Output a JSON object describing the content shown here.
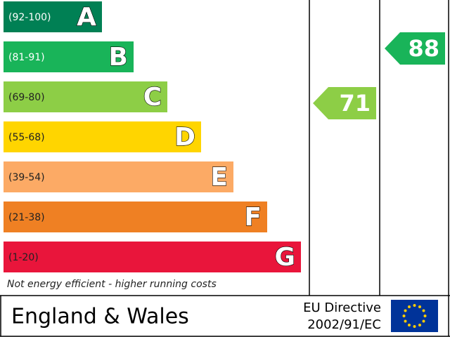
{
  "chart_data": {
    "type": "epc",
    "bands": [
      {
        "range": "(92-100)",
        "letter": "A",
        "color": "#008054"
      },
      {
        "range": "(81-91)",
        "letter": "B",
        "color": "#19b459"
      },
      {
        "range": "(69-80)",
        "letter": "C",
        "color": "#8dce46"
      },
      {
        "range": "(55-68)",
        "letter": "D",
        "color": "#ffd500"
      },
      {
        "range": "(39-54)",
        "letter": "E",
        "color": "#fcaa65"
      },
      {
        "range": "(21-38)",
        "letter": "F",
        "color": "#ef8023"
      },
      {
        "range": "(1-20)",
        "letter": "G",
        "color": "#e9153b"
      }
    ],
    "ratings": [
      71,
      88
    ],
    "note": "Not energy efficient - higher running costs",
    "region": "England & Wales",
    "directive": [
      "EU Directive",
      "2002/91/EC"
    ]
  }
}
